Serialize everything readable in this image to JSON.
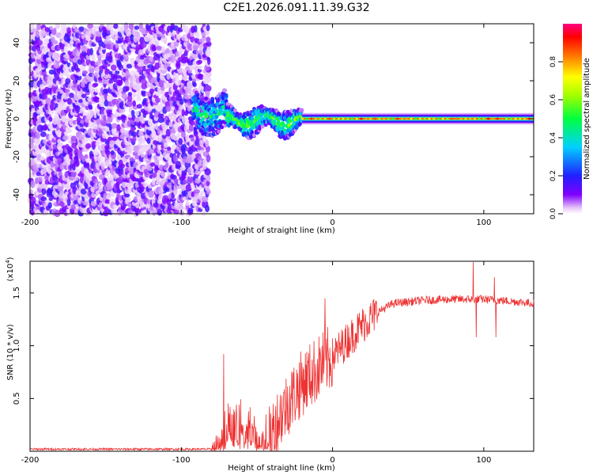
{
  "figure_title": "C2E1.2026.091.11.39.G32",
  "chart_data": [
    {
      "type": "heatmap",
      "title": "",
      "xlabel": "Height of straight line (km)",
      "ylabel": "Frequency (Hz)",
      "xlim": [
        -200,
        133
      ],
      "ylim": [
        -50,
        50
      ],
      "xticks": [
        -200,
        -100,
        0,
        100
      ],
      "yticks": [
        -40,
        -20,
        0,
        20,
        40
      ],
      "colorbar": {
        "label": "Normalized spectral amplitude",
        "range": [
          0,
          1
        ],
        "ticks": [
          "0.0",
          "0.2",
          "0.4",
          "0.6",
          "0.8"
        ]
      },
      "regions": [
        {
          "name": "noise",
          "x": [
            -200,
            -83
          ],
          "freq_range": [
            -50,
            48
          ],
          "amplitude": 0.1
        },
        {
          "name": "onset",
          "x": [
            -92,
            -70
          ],
          "freq_center": 3,
          "freq_spread": 10,
          "amplitude": 0.35
        },
        {
          "name": "scintillating",
          "x": [
            -70,
            -20
          ],
          "freq_center": -1,
          "freq_spread": 6,
          "amplitude": 0.45
        },
        {
          "name": "carrier",
          "x": [
            -20,
            133
          ],
          "freq_center": 0,
          "freq_spread": 3,
          "amplitude": 0.95
        }
      ]
    },
    {
      "type": "line",
      "title": "",
      "xlabel": "Height of straight line (km)",
      "ylabel": "SNR (10 * v/v)",
      "y_multiplier": "(x10",
      "y_multiplier_exp": "4",
      "y_multiplier_close": ")",
      "xlim": [
        -200,
        133
      ],
      "ylim": [
        0,
        1.8
      ],
      "xticks": [
        -200,
        -100,
        0,
        100
      ],
      "yticks": [
        "0.5",
        "1.0",
        "1.5"
      ],
      "color": "#ee3333",
      "profile": [
        [
          -200,
          0.02
        ],
        [
          -80,
          0.02
        ],
        [
          -75,
          0.08
        ],
        [
          -70,
          0.3
        ],
        [
          -65,
          0.35
        ],
        [
          -60,
          0.2
        ],
        [
          -55,
          0.25
        ],
        [
          -50,
          0.2
        ],
        [
          -45,
          0.12
        ],
        [
          -42,
          0.1
        ],
        [
          -38,
          0.25
        ],
        [
          -30,
          0.45
        ],
        [
          -20,
          0.65
        ],
        [
          -10,
          0.78
        ],
        [
          0,
          0.9
        ],
        [
          10,
          1.05
        ],
        [
          20,
          1.2
        ],
        [
          30,
          1.32
        ],
        [
          40,
          1.4
        ],
        [
          60,
          1.43
        ],
        [
          80,
          1.44
        ],
        [
          100,
          1.44
        ],
        [
          120,
          1.42
        ],
        [
          133,
          1.4
        ]
      ],
      "spikes": [
        [
          -72,
          0.92
        ],
        [
          -5,
          1.45
        ],
        [
          93,
          1.8
        ],
        [
          95,
          1.08
        ],
        [
          107,
          1.65
        ],
        [
          108,
          1.08
        ]
      ]
    }
  ]
}
